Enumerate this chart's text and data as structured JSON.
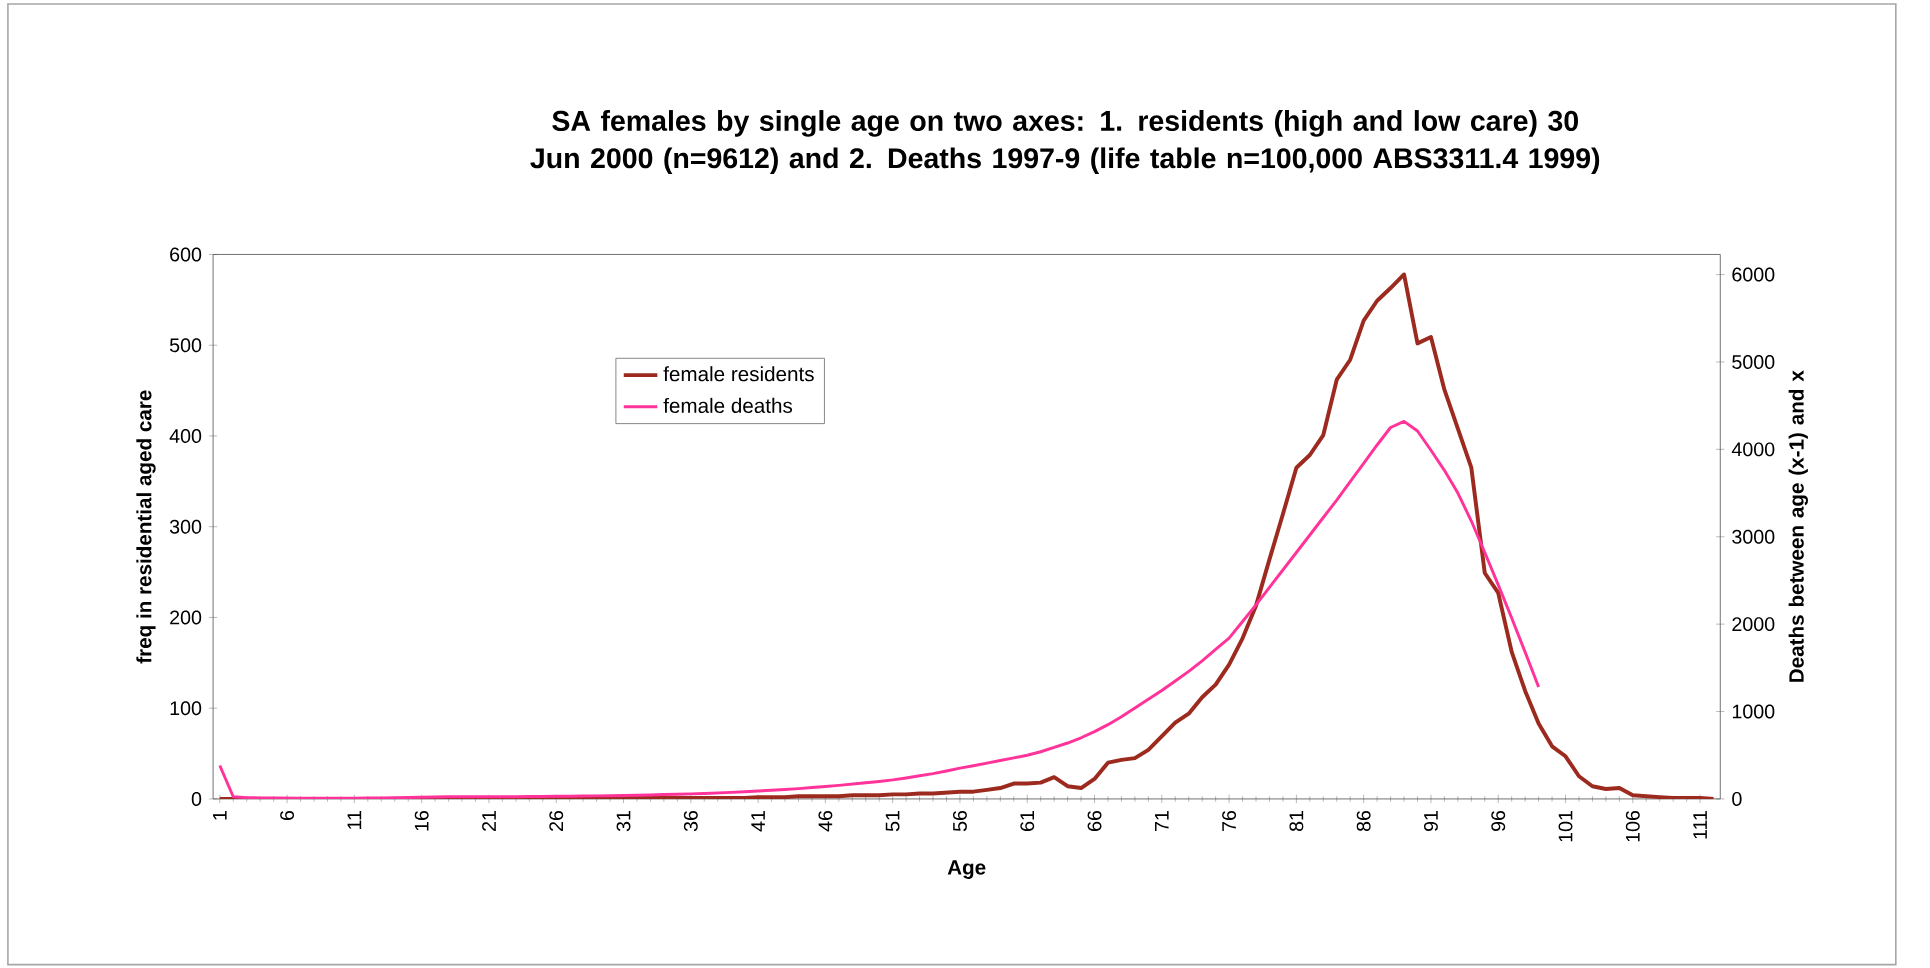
{
  "chart_data": {
    "type": "line",
    "title": "SA females by single age on two axes: 1. residents (high and low care) 30 Jun 2000 (n=9612) and 2. Deaths 1997-9 (life table n=100,000 ABS3311.4 1999)",
    "xlabel": "Age",
    "ylabel": "freq in residential aged care",
    "y2label": "Deaths between age (x-1) and x",
    "x": [
      1,
      2,
      3,
      4,
      5,
      6,
      7,
      8,
      9,
      10,
      11,
      12,
      13,
      14,
      15,
      16,
      17,
      18,
      19,
      20,
      21,
      22,
      23,
      24,
      25,
      26,
      27,
      28,
      29,
      30,
      31,
      32,
      33,
      34,
      35,
      36,
      37,
      38,
      39,
      40,
      41,
      42,
      43,
      44,
      45,
      46,
      47,
      48,
      49,
      50,
      51,
      52,
      53,
      54,
      55,
      56,
      57,
      58,
      59,
      60,
      61,
      62,
      63,
      64,
      65,
      66,
      67,
      68,
      69,
      70,
      71,
      72,
      73,
      74,
      75,
      76,
      77,
      78,
      79,
      80,
      81,
      82,
      83,
      84,
      85,
      86,
      87,
      88,
      89,
      90,
      91,
      92,
      93,
      94,
      95,
      96,
      97,
      98,
      99,
      100,
      101,
      102,
      103,
      104,
      105,
      106,
      107,
      108,
      109,
      110,
      111,
      112
    ],
    "xlim": [
      0.5,
      112.5
    ],
    "xticks": [
      1,
      6,
      11,
      16,
      21,
      26,
      31,
      36,
      41,
      46,
      51,
      56,
      61,
      66,
      71,
      76,
      81,
      86,
      91,
      96,
      101,
      106,
      111
    ],
    "ylim": [
      0,
      600
    ],
    "yticks": [
      0,
      100,
      200,
      300,
      400,
      500,
      600
    ],
    "y2lim": [
      0,
      6230
    ],
    "y2ticks": [
      0,
      1000,
      2000,
      3000,
      4000,
      5000,
      6000
    ],
    "legend": "top left",
    "marker": "none",
    "line_style": "solid",
    "grid": false,
    "series": [
      {
        "name": "female residents",
        "color": "#9c2a1e",
        "values": [
          0,
          0,
          0,
          0,
          0,
          0,
          0,
          0,
          0,
          0,
          0,
          0,
          0,
          0,
          0,
          0,
          0,
          0,
          0,
          0,
          0,
          0,
          0,
          0,
          0,
          0,
          0,
          0,
          0,
          0,
          1,
          1,
          1,
          1,
          1,
          1,
          1,
          1,
          1,
          1,
          2,
          2,
          2,
          3,
          3,
          3,
          3,
          4,
          4,
          4,
          5,
          5,
          6,
          6,
          7,
          8,
          8,
          10,
          12,
          17,
          17,
          18,
          24,
          14,
          12,
          22,
          40,
          43,
          45,
          54,
          69,
          84,
          94,
          112,
          126,
          148,
          177,
          213,
          264,
          314,
          365,
          379,
          401,
          462,
          484,
          527,
          549,
          563,
          578,
          502,
          509,
          451,
          408,
          365,
          249,
          227,
          162,
          119,
          83,
          58,
          47,
          25,
          14,
          11,
          12,
          4,
          3,
          2,
          1,
          1,
          1,
          0
        ]
      },
      {
        "name": "female deaths",
        "color": "#ff3399",
        "axis": "y2",
        "values": [
          383,
          25,
          15,
          12,
          10,
          9,
          8,
          8,
          8,
          8,
          9,
          10,
          11,
          13,
          16,
          20,
          23,
          25,
          25,
          25,
          25,
          26,
          26,
          27,
          28,
          30,
          31,
          33,
          35,
          37,
          40,
          43,
          46,
          50,
          54,
          58,
          63,
          69,
          75,
          82,
          90,
          99,
          108,
          118,
          130,
          143,
          155,
          170,
          185,
          200,
          218,
          240,
          265,
          290,
          320,
          353,
          380,
          410,
          440,
          470,
          500,
          540,
          590,
          640,
          700,
          770,
          850,
          940,
          1040,
          1140,
          1240,
          1350,
          1460,
          1580,
          1710,
          1840,
          2030,
          2220,
          2420,
          2620,
          2820,
          3020,
          3220,
          3420,
          3630,
          3840,
          4050,
          4250,
          4320,
          4210,
          3990,
          3760,
          3500,
          3180,
          2820,
          2450,
          2070,
          1680,
          1280,
          null,
          null,
          null,
          null,
          null,
          null,
          null,
          null,
          null,
          null,
          null,
          null,
          null
        ]
      }
    ]
  }
}
